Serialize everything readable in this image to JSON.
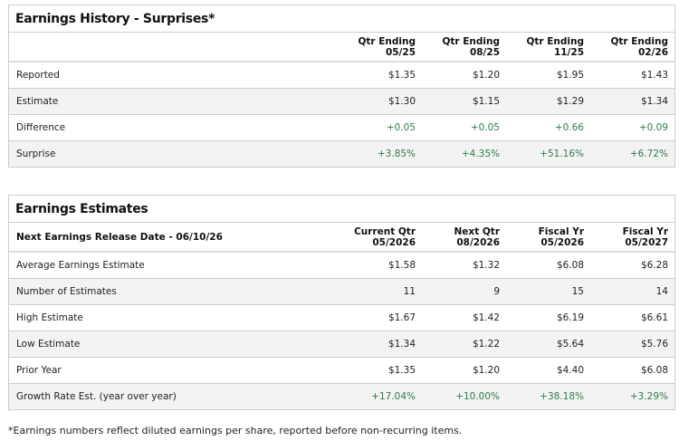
{
  "history": {
    "title": "Earnings History - Surprises*",
    "columns": [
      [
        "Qtr Ending",
        "05/25"
      ],
      [
        "Qtr Ending",
        "08/25"
      ],
      [
        "Qtr Ending",
        "11/25"
      ],
      [
        "Qtr Ending",
        "02/26"
      ]
    ],
    "rows": [
      {
        "label": "Reported",
        "values": [
          "$1.35",
          "$1.20",
          "$1.95",
          "$1.43"
        ],
        "green": false
      },
      {
        "label": "Estimate",
        "values": [
          "$1.30",
          "$1.15",
          "$1.29",
          "$1.34"
        ],
        "green": false
      },
      {
        "label": "Difference",
        "values": [
          "+0.05",
          "+0.05",
          "+0.66",
          "+0.09"
        ],
        "green": true
      },
      {
        "label": "Surprise",
        "values": [
          "+3.85%",
          "+4.35%",
          "+51.16%",
          "+6.72%"
        ],
        "green": true
      }
    ]
  },
  "estimates": {
    "title": "Earnings Estimates",
    "release_label": "Next Earnings Release Date - 06/10/26",
    "columns": [
      [
        "Current Qtr",
        "05/2026"
      ],
      [
        "Next Qtr",
        "08/2026"
      ],
      [
        "Fiscal Yr",
        "05/2026"
      ],
      [
        "Fiscal Yr",
        "05/2027"
      ]
    ],
    "rows": [
      {
        "label": "Average Earnings Estimate",
        "values": [
          "$1.58",
          "$1.32",
          "$6.08",
          "$6.28"
        ],
        "green": false
      },
      {
        "label": "Number of Estimates",
        "values": [
          "11",
          "9",
          "15",
          "14"
        ],
        "green": false
      },
      {
        "label": "High Estimate",
        "values": [
          "$1.67",
          "$1.42",
          "$6.19",
          "$6.61"
        ],
        "green": false
      },
      {
        "label": "Low Estimate",
        "values": [
          "$1.34",
          "$1.22",
          "$5.64",
          "$5.76"
        ],
        "green": false
      },
      {
        "label": "Prior Year",
        "values": [
          "$1.35",
          "$1.20",
          "$4.40",
          "$6.08"
        ],
        "green": false
      },
      {
        "label": "Growth Rate Est. (year over year)",
        "values": [
          "+17.04%",
          "+10.00%",
          "+38.18%",
          "+3.29%"
        ],
        "green": true
      }
    ]
  },
  "footnote": "*Earnings numbers reflect diluted earnings per share, reported before non-recurring items.",
  "colors": {
    "positive": "#2f7d4a",
    "alt_row": "#f3f3f3",
    "border": "#cccccc"
  }
}
